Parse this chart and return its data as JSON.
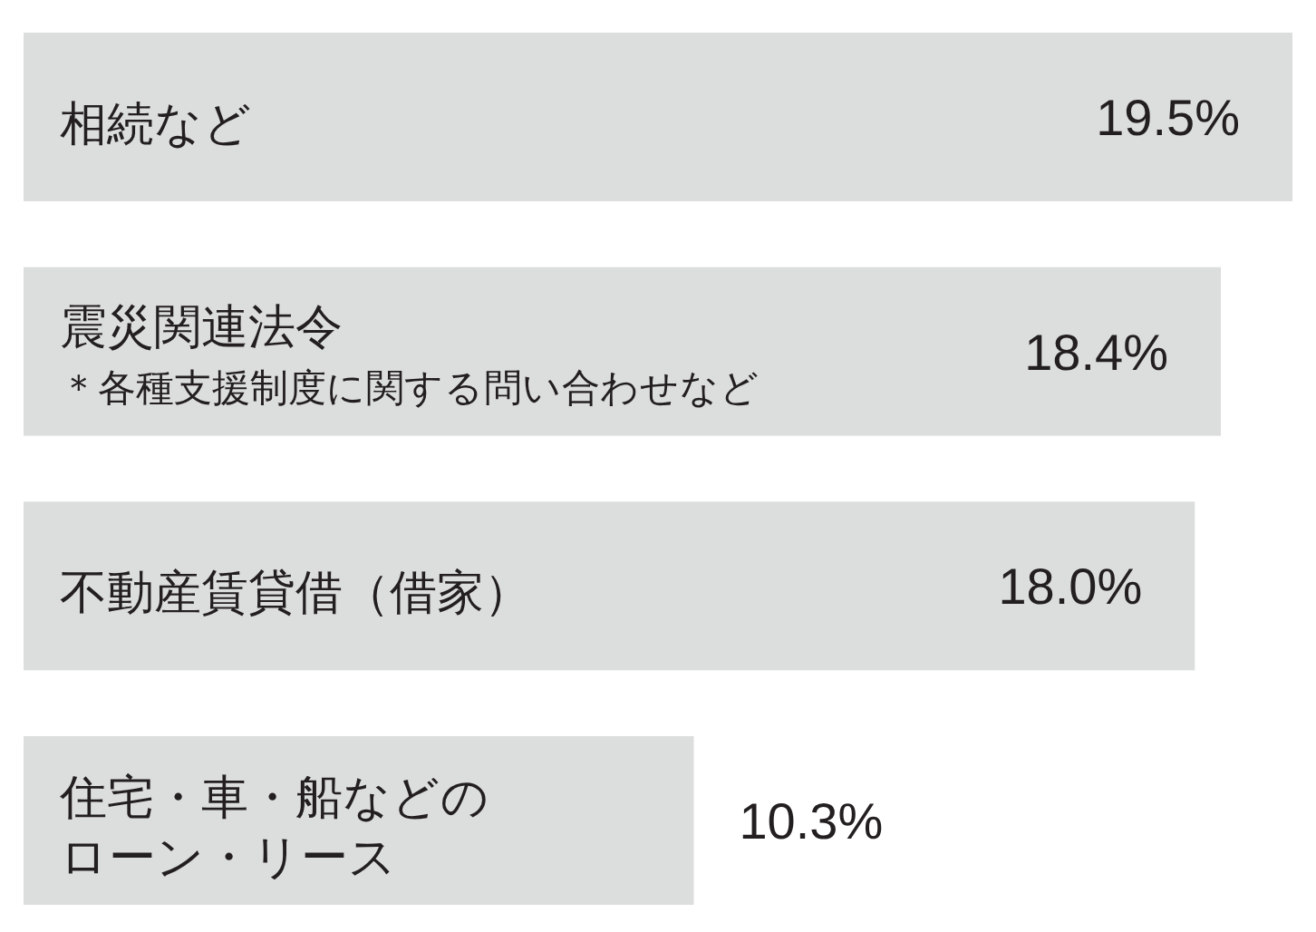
{
  "chart_data": {
    "type": "bar",
    "orientation": "horizontal",
    "categories": [
      "相続など",
      "震災関連法令",
      "不動産賃貸借（借家）",
      "住宅・車・船などのローン・リース"
    ],
    "values": [
      19.5,
      18.4,
      18.0,
      10.3
    ],
    "value_labels": [
      "19.5%",
      "18.4%",
      "18.0%",
      "10.3%"
    ],
    "color": "#dcdddd",
    "tick_labels": "y",
    "annotations": [
      "＊各種支援制度に関する問い合わせなど"
    ]
  }
}
